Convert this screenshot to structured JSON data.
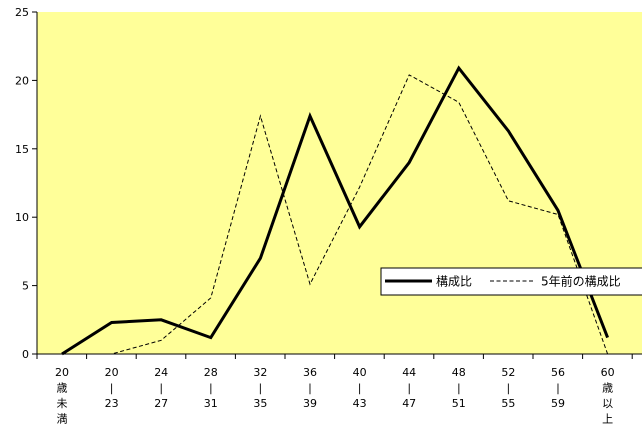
{
  "chart_data": {
    "type": "line",
    "title": "",
    "xlabel": "",
    "ylabel": "",
    "ylim": [
      0,
      25
    ],
    "yticks": [
      0,
      5,
      10,
      15,
      20,
      25
    ],
    "grid": false,
    "plot_background": "#FFFF99",
    "legend_position": "right",
    "categories": [
      [
        "20",
        "歳",
        "未",
        "満"
      ],
      [
        "20",
        "|",
        "23"
      ],
      [
        "24",
        "|",
        "27"
      ],
      [
        "28",
        "|",
        "31"
      ],
      [
        "32",
        "|",
        "35"
      ],
      [
        "36",
        "|",
        "39"
      ],
      [
        "40",
        "|",
        "43"
      ],
      [
        "44",
        "|",
        "47"
      ],
      [
        "48",
        "|",
        "51"
      ],
      [
        "52",
        "|",
        "55"
      ],
      [
        "56",
        "|",
        "59"
      ],
      [
        "60",
        "歳",
        "以",
        "上"
      ]
    ],
    "series": [
      {
        "name": "構成比",
        "style": "solid",
        "color": "#000000",
        "values": [
          0.0,
          2.3,
          2.5,
          1.2,
          7.0,
          17.4,
          9.3,
          14.0,
          20.9,
          16.3,
          10.5,
          1.2
        ]
      },
      {
        "name": "5年前の構成比",
        "style": "dashed",
        "color": "#000000",
        "values": [
          0.0,
          0.0,
          1.0,
          4.1,
          17.4,
          5.1,
          12.2,
          20.4,
          18.4,
          11.2,
          10.2,
          0.0
        ]
      }
    ]
  }
}
